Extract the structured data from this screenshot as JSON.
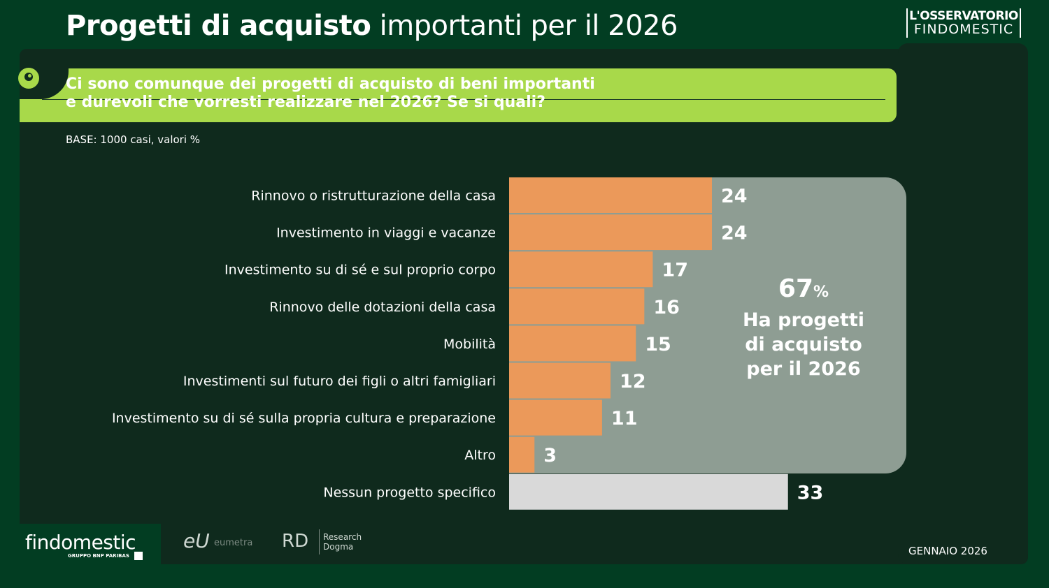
{
  "header": {
    "title_bold": "Progetti di acquisto",
    "title_rest": " importanti per il 2026",
    "brand_line1": "L'OSSERVATORIO",
    "brand_line2": "FINDOMESTIC"
  },
  "question": {
    "line1": "Ci sono comunque dei progetti di acquisto di beni importanti",
    "line2": "e durevoli che vorresti realizzare nel 2026? Se si quali?"
  },
  "base_note": "BASE: 1000 casi, valori %",
  "callout": {
    "value": "67",
    "unit": "%",
    "line1": "Ha progetti",
    "line2": "di acquisto",
    "line3": "per il 2026"
  },
  "chart_data": {
    "type": "bar",
    "orientation": "horizontal",
    "unit": "%",
    "categories": [
      "Rinnovo o ristrutturazione della casa",
      "Investimento in viaggi e vacanze",
      "Investimento su di sé e sul proprio corpo",
      "Rinnovo delle dotazioni della casa",
      "Mobilità",
      "Investimenti sul futuro dei figli o altri famigliari",
      "Investimento su di sé sulla propria cultura e preparazione",
      "Altro",
      "Nessun progetto specifico"
    ],
    "values": [
      24,
      24,
      17,
      16,
      15,
      12,
      11,
      3,
      33
    ],
    "colors": [
      "#eb995a",
      "#eb995a",
      "#eb995a",
      "#eb995a",
      "#eb995a",
      "#eb995a",
      "#eb995a",
      "#eb995a",
      "#d9d9d9"
    ],
    "xlim": [
      0,
      35
    ]
  },
  "footer": {
    "logo": "findomestic",
    "logo_sub": "GRUPPO BNP PARIBAS",
    "partner1_mark": "eU",
    "partner1_name": "eumetra",
    "partner2_mark": "RD",
    "partner2_line1": "Research",
    "partner2_line2": "Dogma",
    "date": "GENNAIO 2026"
  }
}
